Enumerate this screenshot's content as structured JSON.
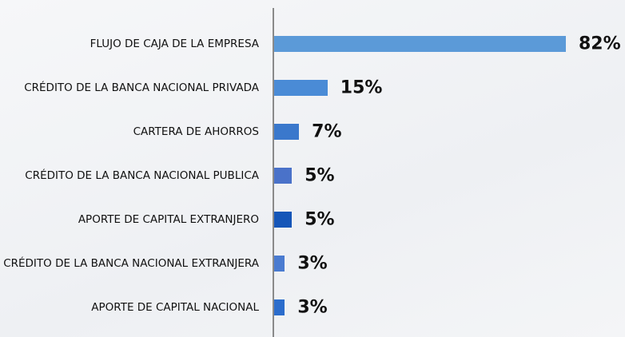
{
  "chart_data": {
    "type": "bar",
    "orientation": "horizontal",
    "categories": [
      "FLUJO DE CAJA DE LA EMPRESA",
      "CRÉDITO DE LA BANCA NACIONAL PRIVADA",
      "CARTERA DE AHORROS",
      "CRÉDITO DE LA BANCA NACIONAL PUBLICA",
      "APORTE DE CAPITAL EXTRANJERO",
      "CRÉDITO DE LA BANCA NACIONAL EXTRANJERA",
      "APORTE DE CAPITAL NACIONAL"
    ],
    "values": [
      82,
      15,
      7,
      5,
      5,
      3,
      3
    ],
    "value_labels": [
      "82%",
      "15%",
      "7%",
      "5%",
      "5%",
      "3%",
      "3%"
    ],
    "colors": [
      "#5b9ad8",
      "#4a8bd6",
      "#3a78cc",
      "#4a72c9",
      "#1556b8",
      "#4a7bd0",
      "#2b6dcc"
    ]
  }
}
